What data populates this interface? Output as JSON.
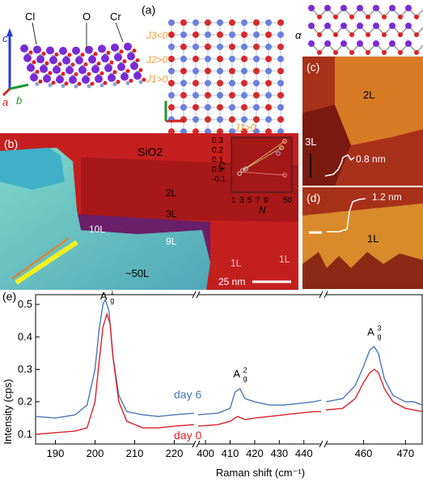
{
  "panels": {
    "a": {
      "label": "(a)",
      "atoms": [
        "Cl",
        "O",
        "Cr"
      ],
      "axes": [
        "c",
        "a",
        "b"
      ],
      "couplings": [
        "J3<0",
        "J2>0",
        "J1>0",
        "J1>0"
      ],
      "angle": "α"
    },
    "b": {
      "label": "(b)",
      "regions": [
        "SiO2",
        "2L",
        "3L",
        "10L",
        "9L",
        "~50L",
        "1L",
        "1L"
      ],
      "scale_bar": "25 nm",
      "inset": {
        "ylabel": "C",
        "xlabel": "N",
        "yticks": [
          "0.3",
          "0.2",
          "0.1",
          "0.0",
          "-0.1"
        ],
        "xticks": [
          "1",
          "3",
          "5",
          "7",
          "9",
          "50"
        ]
      }
    },
    "c": {
      "label": "(c)",
      "layers": [
        "2L",
        "3L"
      ],
      "step": "0.8 nm"
    },
    "d": {
      "label": "(d)",
      "layers": [
        "1L"
      ],
      "step": "1.2 nm"
    },
    "e": {
      "label": "(e)",
      "ylabel": "Intensity (cps)",
      "xlabel": "Raman shift (cm⁻¹)",
      "series_labels": [
        "day 6",
        "day 0"
      ],
      "peaks": [
        "A",
        "A",
        "A"
      ],
      "peak_sup": [
        "1",
        "2",
        "3"
      ],
      "peak_sub": "g"
    }
  },
  "chart_data": {
    "type": "line",
    "title": "",
    "xlabel": "Raman shift (cm⁻¹)",
    "ylabel": "Intensity (cps)",
    "ylim": [
      0.07,
      0.53
    ],
    "yticks": [
      0.1,
      0.2,
      0.3,
      0.4,
      0.5
    ],
    "x_segments": [
      {
        "range": [
          185,
          225
        ],
        "ticks": [
          190,
          200,
          210,
          220
        ]
      },
      {
        "range": [
          397,
          447
        ],
        "ticks": [
          400,
          410,
          420,
          430,
          440
        ]
      },
      {
        "range": [
          451,
          474
        ],
        "ticks": [
          460,
          470
        ]
      }
    ],
    "series": [
      {
        "name": "day 6",
        "color": "#4a78b8",
        "points": [
          [
            185,
            0.155
          ],
          [
            190,
            0.15
          ],
          [
            195,
            0.16
          ],
          [
            198,
            0.19
          ],
          [
            200,
            0.3
          ],
          [
            201,
            0.42
          ],
          [
            202,
            0.5
          ],
          [
            202.6,
            0.515
          ],
          [
            203.5,
            0.48
          ],
          [
            204.5,
            0.34
          ],
          [
            206,
            0.22
          ],
          [
            208,
            0.17
          ],
          [
            212,
            0.16
          ],
          [
            216,
            0.155
          ],
          [
            220,
            0.16
          ],
          [
            225,
            0.165
          ],
          [
            397,
            0.16
          ],
          [
            405,
            0.165
          ],
          [
            410,
            0.18
          ],
          [
            412,
            0.23
          ],
          [
            414,
            0.24
          ],
          [
            416,
            0.21
          ],
          [
            420,
            0.2
          ],
          [
            426,
            0.19
          ],
          [
            432,
            0.19
          ],
          [
            438,
            0.195
          ],
          [
            444,
            0.2
          ],
          [
            447,
            0.205
          ],
          [
            451,
            0.2
          ],
          [
            455,
            0.21
          ],
          [
            458,
            0.25
          ],
          [
            460,
            0.31
          ],
          [
            461.5,
            0.36
          ],
          [
            462.5,
            0.37
          ],
          [
            463.5,
            0.35
          ],
          [
            465,
            0.27
          ],
          [
            467,
            0.22
          ],
          [
            470,
            0.2
          ],
          [
            472,
            0.2
          ],
          [
            474,
            0.19
          ]
        ]
      },
      {
        "name": "day 0",
        "color": "#e0202a",
        "points": [
          [
            185,
            0.1
          ],
          [
            190,
            0.105
          ],
          [
            195,
            0.11
          ],
          [
            198,
            0.12
          ],
          [
            200,
            0.2
          ],
          [
            201,
            0.32
          ],
          [
            202,
            0.43
          ],
          [
            203,
            0.47
          ],
          [
            203.8,
            0.44
          ],
          [
            204.5,
            0.34
          ],
          [
            206,
            0.2
          ],
          [
            208,
            0.14
          ],
          [
            212,
            0.12
          ],
          [
            216,
            0.12
          ],
          [
            220,
            0.125
          ],
          [
            225,
            0.13
          ],
          [
            397,
            0.125
          ],
          [
            405,
            0.13
          ],
          [
            410,
            0.14
          ],
          [
            413,
            0.155
          ],
          [
            416,
            0.145
          ],
          [
            420,
            0.15
          ],
          [
            426,
            0.155
          ],
          [
            432,
            0.16
          ],
          [
            438,
            0.165
          ],
          [
            444,
            0.17
          ],
          [
            447,
            0.17
          ],
          [
            451,
            0.175
          ],
          [
            455,
            0.18
          ],
          [
            458,
            0.21
          ],
          [
            460,
            0.26
          ],
          [
            461.5,
            0.29
          ],
          [
            462.5,
            0.3
          ],
          [
            463.5,
            0.29
          ],
          [
            465,
            0.24
          ],
          [
            467,
            0.2
          ],
          [
            470,
            0.18
          ],
          [
            472,
            0.175
          ],
          [
            474,
            0.17
          ]
        ]
      }
    ],
    "annotations": [
      "A1g",
      "A2g",
      "A3g",
      "day 6",
      "day 0"
    ]
  }
}
